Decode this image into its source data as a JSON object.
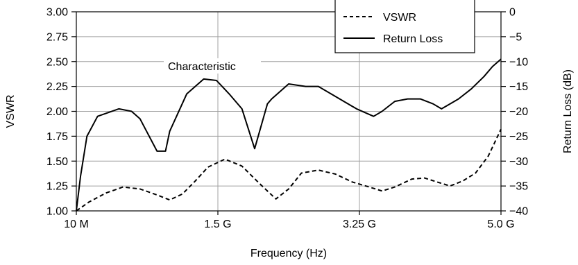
{
  "chart_data": {
    "type": "line",
    "xlabel": "Frequency (Hz)",
    "ylabel": "VSWR",
    "y2label": "Return Loss (dB)",
    "x_categories": [
      "10 M",
      "1.5 G",
      "3.25 G",
      "5.0 G"
    ],
    "ylim": [
      1.0,
      3.0
    ],
    "y_ticks": [
      "1.00",
      "1.25",
      "1.50",
      "1.75",
      "2.00",
      "2.25",
      "2.50",
      "2.75",
      "3.00"
    ],
    "y2lim": [
      -40,
      0
    ],
    "y2_ticks": [
      "−40",
      "−35",
      "−30",
      "−25",
      "−20",
      "−15",
      "−10",
      "−5",
      "0"
    ],
    "annotation": "Characteristic",
    "grid": true,
    "legend_position": "top-right",
    "series": [
      {
        "name": "VSWR",
        "style": "dashed",
        "axis": "left",
        "x": [
          0.0,
          0.03,
          0.07,
          0.11,
          0.15,
          0.19,
          0.22,
          0.25,
          0.28,
          0.31,
          0.35,
          0.39,
          0.43,
          0.47,
          0.5,
          0.53,
          0.57,
          0.61,
          0.65,
          0.69,
          0.72,
          0.75,
          0.79,
          0.82,
          0.85,
          0.88,
          0.91,
          0.94,
          0.97,
          1.0
        ],
        "values": [
          1.0,
          1.09,
          1.18,
          1.24,
          1.22,
          1.16,
          1.11,
          1.17,
          1.3,
          1.44,
          1.52,
          1.45,
          1.28,
          1.12,
          1.22,
          1.38,
          1.41,
          1.37,
          1.29,
          1.24,
          1.2,
          1.24,
          1.32,
          1.33,
          1.29,
          1.25,
          1.3,
          1.38,
          1.55,
          1.82
        ]
      },
      {
        "name": "Return Loss",
        "style": "solid",
        "axis": "right",
        "x": [
          0.0,
          0.01,
          0.025,
          0.05,
          0.1,
          0.13,
          0.15,
          0.19,
          0.21,
          0.22,
          0.26,
          0.3,
          0.33,
          0.36,
          0.39,
          0.42,
          0.45,
          0.46,
          0.5,
          0.54,
          0.57,
          0.6,
          0.66,
          0.7,
          0.72,
          0.75,
          0.78,
          0.81,
          0.84,
          0.86,
          0.88,
          0.9,
          0.93,
          0.96,
          0.98,
          1.0
        ],
        "values": [
          -40,
          -33,
          -25,
          -21,
          -19.5,
          -20,
          -21.5,
          -28,
          -28,
          -24,
          -16.5,
          -13.5,
          -13.8,
          -16.5,
          -19.5,
          -27.5,
          -18.5,
          -17.5,
          -14.5,
          -15,
          -15,
          -16.5,
          -19.5,
          -21,
          -20,
          -18,
          -17.5,
          -17.5,
          -18.5,
          -19.5,
          -18.5,
          -17.5,
          -15.5,
          -13,
          -11,
          -9.5
        ]
      }
    ]
  }
}
